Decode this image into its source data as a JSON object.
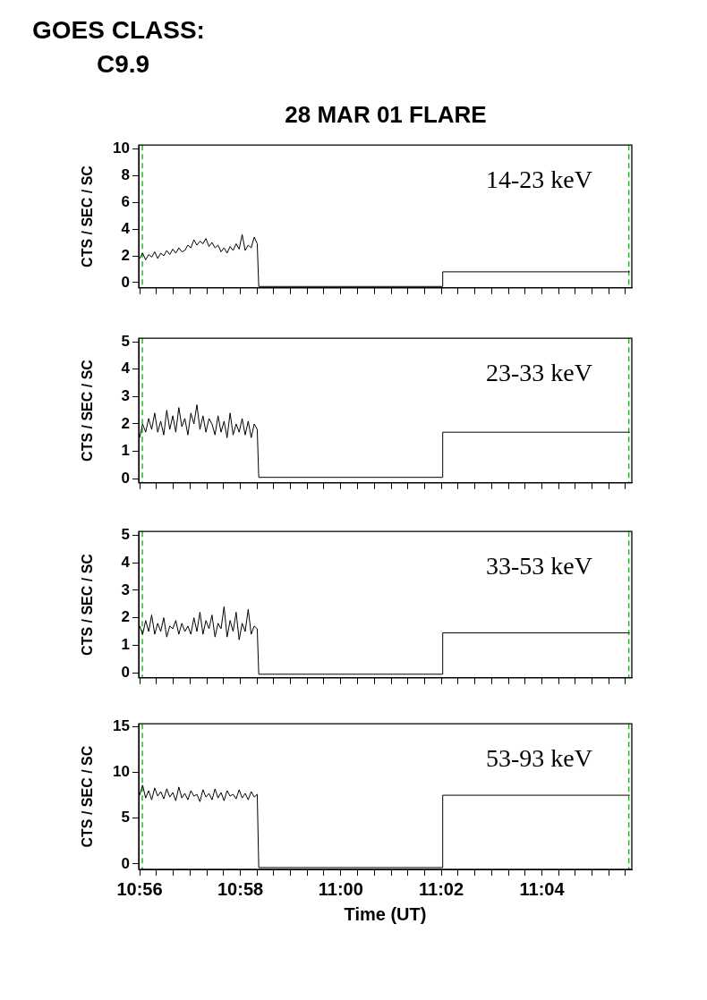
{
  "chart_data": [
    {
      "type": "line",
      "title": "28 MAR 01 FLARE",
      "ylabel": "CTS / SEC / SC",
      "annotations": [
        "GOES CLASS:",
        "C9.9",
        "14-23 keV"
      ],
      "marker": "none",
      "tick_labels": "y",
      "x": [
        10.9333,
        10.9343,
        10.9353,
        10.9363,
        10.9373,
        10.9383,
        10.9393,
        10.9403,
        10.9413,
        10.9423,
        10.9433,
        10.9443,
        10.9453,
        10.9463,
        10.9473,
        10.9483,
        10.9493,
        10.9503,
        10.9513,
        10.9523,
        10.9533,
        10.9543,
        10.9553,
        10.9563,
        10.9573,
        10.9583,
        10.9593,
        10.9603,
        10.9613,
        10.9623,
        10.9633,
        10.9643,
        10.9653,
        10.9663,
        10.9673,
        10.9683,
        10.9693,
        10.9703,
        10.9713,
        10.9723,
        10.9728,
        11.0338,
        11.0338,
        11.0958
      ],
      "series": [
        {
          "color": "#000000",
          "values": [
            1.8,
            2.2,
            1.7,
            2.1,
            1.9,
            2.3,
            1.8,
            2.2,
            2.0,
            2.4,
            2.1,
            2.5,
            2.2,
            2.6,
            2.3,
            2.4,
            2.8,
            2.6,
            3.2,
            2.8,
            3.1,
            2.9,
            3.3,
            2.7,
            3.0,
            2.6,
            2.8,
            2.3,
            2.6,
            2.2,
            2.7,
            2.4,
            2.9,
            2.5,
            3.6,
            2.4,
            2.8,
            2.6,
            3.4,
            2.9,
            -0.3,
            -0.3,
            0.8,
            0.8
          ]
        }
      ],
      "xlim": [
        10.933,
        11.0965
      ],
      "xticks": [
        {
          "value": 10.9333,
          "label": null
        },
        {
          "value": 10.9389,
          "label": null
        },
        {
          "value": 10.9444,
          "label": null
        },
        {
          "value": 10.95,
          "label": null
        },
        {
          "value": 10.9556,
          "label": null
        },
        {
          "value": 10.9611,
          "label": null
        },
        {
          "value": 10.9667,
          "label": null
        },
        {
          "value": 10.9722,
          "label": null
        },
        {
          "value": 10.9778,
          "label": null
        },
        {
          "value": 10.9833,
          "label": null
        },
        {
          "value": 10.9889,
          "label": null
        },
        {
          "value": 10.9944,
          "label": null
        },
        {
          "value": 11,
          "label": null
        },
        {
          "value": 11.0056,
          "label": null
        },
        {
          "value": 11.0111,
          "label": null
        },
        {
          "value": 11.0167,
          "label": null
        },
        {
          "value": 11.0222,
          "label": null
        },
        {
          "value": 11.0278,
          "label": null
        },
        {
          "value": 11.0333,
          "label": null
        },
        {
          "value": 11.0389,
          "label": null
        },
        {
          "value": 11.0444,
          "label": null
        },
        {
          "value": 11.05,
          "label": null
        },
        {
          "value": 11.0556,
          "label": null
        },
        {
          "value": 11.0611,
          "label": null
        },
        {
          "value": 11.0667,
          "label": null
        },
        {
          "value": 11.0722,
          "label": null
        },
        {
          "value": 11.0778,
          "label": null
        },
        {
          "value": 11.0833,
          "label": null
        },
        {
          "value": 11.0889,
          "label": null
        },
        {
          "value": 11.0944,
          "label": null
        }
      ],
      "ylim": [
        -0.4,
        10.3
      ],
      "yticks": [
        0,
        2,
        4,
        6,
        8,
        10
      ],
      "ref_lines": [
        {
          "axis": "x",
          "value": 10.9342,
          "color": "#22bb22",
          "line_style": "dashed"
        },
        {
          "axis": "x",
          "value": 11.0955,
          "color": "#22bb22",
          "line_style": "dashed"
        }
      ]
    },
    {
      "type": "line",
      "ylabel": "CTS / SEC / SC",
      "annotations": [
        "23-33 keV"
      ],
      "marker": "none",
      "tick_labels": "y",
      "x": [
        10.9333,
        10.9343,
        10.9353,
        10.9363,
        10.9373,
        10.9383,
        10.9393,
        10.9403,
        10.9413,
        10.9423,
        10.9433,
        10.9443,
        10.9453,
        10.9463,
        10.9473,
        10.9483,
        10.9493,
        10.9503,
        10.9513,
        10.9523,
        10.9533,
        10.9543,
        10.9553,
        10.9563,
        10.9573,
        10.9583,
        10.9593,
        10.9603,
        10.9613,
        10.9623,
        10.9633,
        10.9643,
        10.9653,
        10.9663,
        10.9673,
        10.9683,
        10.9693,
        10.9703,
        10.9713,
        10.9723,
        10.9728,
        11.0338,
        11.0338,
        11.0958
      ],
      "series": [
        {
          "color": "#000000",
          "values": [
            1.5,
            2.0,
            1.7,
            2.2,
            1.8,
            2.4,
            1.7,
            2.1,
            1.6,
            2.5,
            1.8,
            2.3,
            1.7,
            2.6,
            1.9,
            2.2,
            1.6,
            2.4,
            2.0,
            2.7,
            1.8,
            2.3,
            1.7,
            2.2,
            2.0,
            1.6,
            2.3,
            1.7,
            2.1,
            1.5,
            2.4,
            1.6,
            2.0,
            1.7,
            2.2,
            1.6,
            2.1,
            1.5,
            2.0,
            1.8,
            0.05,
            0.05,
            1.7,
            1.7
          ]
        }
      ],
      "xlim": [
        10.933,
        11.0965
      ],
      "xticks": [
        {
          "value": 10.9333,
          "label": null
        },
        {
          "value": 10.9389,
          "label": null
        },
        {
          "value": 10.9444,
          "label": null
        },
        {
          "value": 10.95,
          "label": null
        },
        {
          "value": 10.9556,
          "label": null
        },
        {
          "value": 10.9611,
          "label": null
        },
        {
          "value": 10.9667,
          "label": null
        },
        {
          "value": 10.9722,
          "label": null
        },
        {
          "value": 10.9778,
          "label": null
        },
        {
          "value": 10.9833,
          "label": null
        },
        {
          "value": 10.9889,
          "label": null
        },
        {
          "value": 10.9944,
          "label": null
        },
        {
          "value": 11,
          "label": null
        },
        {
          "value": 11.0056,
          "label": null
        },
        {
          "value": 11.0111,
          "label": null
        },
        {
          "value": 11.0167,
          "label": null
        },
        {
          "value": 11.0222,
          "label": null
        },
        {
          "value": 11.0278,
          "label": null
        },
        {
          "value": 11.0333,
          "label": null
        },
        {
          "value": 11.0389,
          "label": null
        },
        {
          "value": 11.0444,
          "label": null
        },
        {
          "value": 11.05,
          "label": null
        },
        {
          "value": 11.0556,
          "label": null
        },
        {
          "value": 11.0611,
          "label": null
        },
        {
          "value": 11.0667,
          "label": null
        },
        {
          "value": 11.0722,
          "label": null
        },
        {
          "value": 11.0778,
          "label": null
        },
        {
          "value": 11.0833,
          "label": null
        },
        {
          "value": 11.0889,
          "label": null
        },
        {
          "value": 11.0944,
          "label": null
        }
      ],
      "ylim": [
        -0.15,
        5.13
      ],
      "yticks": [
        0,
        1,
        2,
        3,
        4,
        5
      ],
      "ref_lines": [
        {
          "axis": "x",
          "value": 10.9342,
          "color": "#22bb22",
          "line_style": "dashed"
        },
        {
          "axis": "x",
          "value": 11.0955,
          "color": "#22bb22",
          "line_style": "dashed"
        }
      ]
    },
    {
      "type": "line",
      "ylabel": "CTS / SEC / SC",
      "annotations": [
        "33-53 keV"
      ],
      "marker": "none",
      "tick_labels": "y",
      "x": [
        10.9333,
        10.9343,
        10.9353,
        10.9363,
        10.9373,
        10.9383,
        10.9393,
        10.9403,
        10.9413,
        10.9423,
        10.9433,
        10.9443,
        10.9453,
        10.9463,
        10.9473,
        10.9483,
        10.9493,
        10.9503,
        10.9513,
        10.9523,
        10.9533,
        10.9543,
        10.9553,
        10.9563,
        10.9573,
        10.9583,
        10.9593,
        10.9603,
        10.9613,
        10.9623,
        10.9633,
        10.9643,
        10.9653,
        10.9663,
        10.9673,
        10.9683,
        10.9693,
        10.9703,
        10.9713,
        10.9723,
        10.9728,
        11.0338,
        11.0338,
        11.0958
      ],
      "series": [
        {
          "color": "#000000",
          "values": [
            1.7,
            1.4,
            1.9,
            1.5,
            2.1,
            1.4,
            1.8,
            1.5,
            2.0,
            1.3,
            1.7,
            1.6,
            1.9,
            1.4,
            1.8,
            1.5,
            1.7,
            1.4,
            2.0,
            1.5,
            2.2,
            1.4,
            1.9,
            1.6,
            2.1,
            1.3,
            1.8,
            1.6,
            2.4,
            1.3,
            1.9,
            1.5,
            2.2,
            1.2,
            1.8,
            1.5,
            2.3,
            1.4,
            1.7,
            1.6,
            -0.05,
            -0.05,
            1.45,
            1.45
          ]
        }
      ],
      "xlim": [
        10.933,
        11.0965
      ],
      "xticks": [
        {
          "value": 10.9333,
          "label": null
        },
        {
          "value": 10.9389,
          "label": null
        },
        {
          "value": 10.9444,
          "label": null
        },
        {
          "value": 10.95,
          "label": null
        },
        {
          "value": 10.9556,
          "label": null
        },
        {
          "value": 10.9611,
          "label": null
        },
        {
          "value": 10.9667,
          "label": null
        },
        {
          "value": 10.9722,
          "label": null
        },
        {
          "value": 10.9778,
          "label": null
        },
        {
          "value": 10.9833,
          "label": null
        },
        {
          "value": 10.9889,
          "label": null
        },
        {
          "value": 10.9944,
          "label": null
        },
        {
          "value": 11,
          "label": null
        },
        {
          "value": 11.0056,
          "label": null
        },
        {
          "value": 11.0111,
          "label": null
        },
        {
          "value": 11.0167,
          "label": null
        },
        {
          "value": 11.0222,
          "label": null
        },
        {
          "value": 11.0278,
          "label": null
        },
        {
          "value": 11.0333,
          "label": null
        },
        {
          "value": 11.0389,
          "label": null
        },
        {
          "value": 11.0444,
          "label": null
        },
        {
          "value": 11.05,
          "label": null
        },
        {
          "value": 11.0556,
          "label": null
        },
        {
          "value": 11.0611,
          "label": null
        },
        {
          "value": 11.0667,
          "label": null
        },
        {
          "value": 11.0722,
          "label": null
        },
        {
          "value": 11.0778,
          "label": null
        },
        {
          "value": 11.0833,
          "label": null
        },
        {
          "value": 11.0889,
          "label": null
        },
        {
          "value": 11.0944,
          "label": null
        }
      ],
      "ylim": [
        -0.18,
        5.13
      ],
      "yticks": [
        0,
        1,
        2,
        3,
        4,
        5
      ],
      "ref_lines": [
        {
          "axis": "x",
          "value": 10.9342,
          "color": "#22bb22",
          "line_style": "dashed"
        },
        {
          "axis": "x",
          "value": 11.0955,
          "color": "#22bb22",
          "line_style": "dashed"
        }
      ]
    },
    {
      "type": "line",
      "xlabel": "Time (UT)",
      "ylabel": "CTS / SEC / SC",
      "annotations": [
        "53-93 keV"
      ],
      "marker": "none",
      "x": [
        10.9333,
        10.9343,
        10.9353,
        10.9363,
        10.9373,
        10.9383,
        10.9393,
        10.9403,
        10.9413,
        10.9423,
        10.9433,
        10.9443,
        10.9453,
        10.9463,
        10.9473,
        10.9483,
        10.9493,
        10.9503,
        10.9513,
        10.9523,
        10.9533,
        10.9543,
        10.9553,
        10.9563,
        10.9573,
        10.9583,
        10.9593,
        10.9603,
        10.9613,
        10.9623,
        10.9633,
        10.9643,
        10.9653,
        10.9663,
        10.9673,
        10.9683,
        10.9693,
        10.9703,
        10.9713,
        10.9723,
        10.9728,
        11.0338,
        11.0338,
        11.0958
      ],
      "series": [
        {
          "color": "#000000",
          "values": [
            7.5,
            8.6,
            7.2,
            8.0,
            7.0,
            8.3,
            7.4,
            7.9,
            7.1,
            8.2,
            7.3,
            7.8,
            6.9,
            8.4,
            7.2,
            7.7,
            7.0,
            8.0,
            7.4,
            7.6,
            6.8,
            8.1,
            7.3,
            7.7,
            7.0,
            8.2,
            7.2,
            7.8,
            6.9,
            8.0,
            7.4,
            7.6,
            7.1,
            8.1,
            7.2,
            7.7,
            7.0,
            7.9,
            7.3,
            7.6,
            -0.4,
            -0.4,
            7.5,
            7.5
          ]
        }
      ],
      "xlim": [
        10.933,
        11.0965
      ],
      "xticks": [
        {
          "value": 10.9333,
          "label": "10:56"
        },
        {
          "value": 10.9389,
          "label": null
        },
        {
          "value": 10.9444,
          "label": null
        },
        {
          "value": 10.95,
          "label": null
        },
        {
          "value": 10.9556,
          "label": null
        },
        {
          "value": 10.9611,
          "label": null
        },
        {
          "value": 10.9667,
          "label": "10:58"
        },
        {
          "value": 10.9722,
          "label": null
        },
        {
          "value": 10.9778,
          "label": null
        },
        {
          "value": 10.9833,
          "label": null
        },
        {
          "value": 10.9889,
          "label": null
        },
        {
          "value": 10.9944,
          "label": null
        },
        {
          "value": 11,
          "label": "11:00"
        },
        {
          "value": 11.0056,
          "label": null
        },
        {
          "value": 11.0111,
          "label": null
        },
        {
          "value": 11.0167,
          "label": null
        },
        {
          "value": 11.0222,
          "label": null
        },
        {
          "value": 11.0278,
          "label": null
        },
        {
          "value": 11.0333,
          "label": "11:02"
        },
        {
          "value": 11.0389,
          "label": null
        },
        {
          "value": 11.0444,
          "label": null
        },
        {
          "value": 11.05,
          "label": null
        },
        {
          "value": 11.0556,
          "label": null
        },
        {
          "value": 11.0611,
          "label": null
        },
        {
          "value": 11.0667,
          "label": "11:04"
        },
        {
          "value": 11.0722,
          "label": null
        },
        {
          "value": 11.0778,
          "label": null
        },
        {
          "value": 11.0833,
          "label": null
        },
        {
          "value": 11.0889,
          "label": null
        },
        {
          "value": 11.0944,
          "label": null
        }
      ],
      "ylim": [
        -0.6,
        15.3
      ],
      "yticks": [
        0,
        5,
        10,
        15
      ],
      "ref_lines": [
        {
          "axis": "x",
          "value": 10.9342,
          "color": "#22bb22",
          "line_style": "dashed"
        },
        {
          "axis": "x",
          "value": 11.0955,
          "color": "#22bb22",
          "line_style": "dashed"
        }
      ]
    }
  ]
}
